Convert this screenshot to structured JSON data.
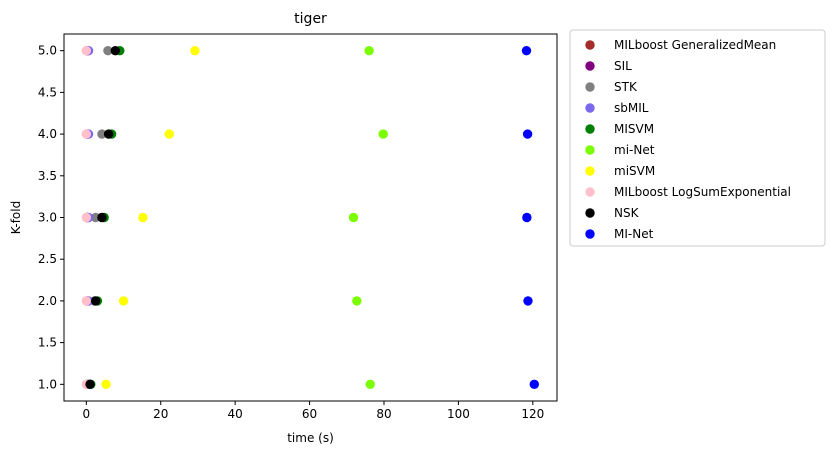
{
  "chart_data": {
    "type": "scatter",
    "title": "tiger",
    "xlabel": "time (s)",
    "ylabel": "K-fold",
    "xlim": [
      -6,
      126.5
    ],
    "ylim": [
      0.8,
      5.2
    ],
    "xticks": [
      0,
      20,
      40,
      60,
      80,
      100,
      120
    ],
    "xtick_labels": [
      "0",
      "20",
      "40",
      "60",
      "80",
      "100",
      "120"
    ],
    "yticks": [
      1.0,
      1.5,
      2.0,
      2.5,
      3.0,
      3.5,
      4.0,
      4.5,
      5.0
    ],
    "ytick_labels": [
      "1.0",
      "1.5",
      "2.0",
      "2.5",
      "3.0",
      "3.5",
      "4.0",
      "4.5",
      "5.0"
    ],
    "grid": false,
    "legend_placement": "outside-right-top",
    "series": [
      {
        "name": "MILboost GeneralizedMean",
        "color": "#a52a2a",
        "points": [
          [
            0.1,
            1
          ],
          [
            0.1,
            2
          ],
          [
            0.1,
            3
          ],
          [
            0.1,
            4
          ],
          [
            0.1,
            5
          ]
        ]
      },
      {
        "name": "SIL",
        "color": "#800080",
        "points": [
          [
            0.3,
            1
          ],
          [
            0.3,
            2
          ],
          [
            0.3,
            3
          ],
          [
            0.3,
            4
          ],
          [
            0.3,
            5
          ]
        ]
      },
      {
        "name": "STK",
        "color": "#808080",
        "points": [
          [
            1.0,
            1
          ],
          [
            2.2,
            2
          ],
          [
            2.5,
            3
          ],
          [
            4.2,
            4
          ],
          [
            5.8,
            5
          ]
        ]
      },
      {
        "name": "sbMIL",
        "color": "#7b68ee",
        "points": [
          [
            0.6,
            1
          ],
          [
            0.6,
            2
          ],
          [
            0.6,
            3
          ],
          [
            0.6,
            4
          ],
          [
            0.6,
            5
          ]
        ]
      },
      {
        "name": "MISVM",
        "color": "#008000",
        "points": [
          [
            1.2,
            1
          ],
          [
            3.0,
            2
          ],
          [
            4.8,
            3
          ],
          [
            6.8,
            4
          ],
          [
            9.0,
            5
          ]
        ]
      },
      {
        "name": "mi-Net",
        "color": "#7cfc00",
        "points": [
          [
            76.3,
            1
          ],
          [
            72.7,
            2
          ],
          [
            71.8,
            3
          ],
          [
            79.8,
            4
          ],
          [
            76.0,
            5
          ]
        ]
      },
      {
        "name": "miSVM",
        "color": "#ffff00",
        "points": [
          [
            5.3,
            1
          ],
          [
            10.0,
            2
          ],
          [
            15.2,
            3
          ],
          [
            22.3,
            4
          ],
          [
            29.2,
            5
          ]
        ]
      },
      {
        "name": "MILboost LogSumExponential",
        "color": "#ffc0cb",
        "points": [
          [
            0.0,
            1
          ],
          [
            0.0,
            2
          ],
          [
            0.0,
            3
          ],
          [
            0.0,
            4
          ],
          [
            0.0,
            5
          ]
        ]
      },
      {
        "name": "NSK",
        "color": "#000000",
        "points": [
          [
            1.0,
            1
          ],
          [
            2.5,
            2
          ],
          [
            4.2,
            3
          ],
          [
            6.0,
            4
          ],
          [
            7.8,
            5
          ]
        ]
      },
      {
        "name": "MI-Net",
        "color": "#0000ff",
        "points": [
          [
            120.4,
            1
          ],
          [
            118.7,
            2
          ],
          [
            118.4,
            3
          ],
          [
            118.6,
            4
          ],
          [
            118.3,
            5
          ]
        ]
      }
    ]
  }
}
